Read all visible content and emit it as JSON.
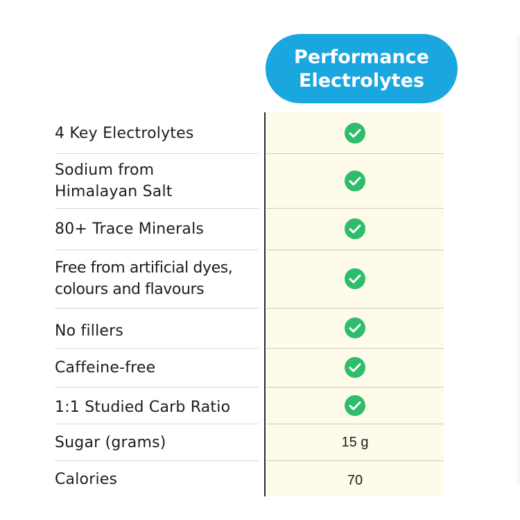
{
  "header": {
    "line1": "Performance",
    "line2": "Electrolytes",
    "color": "#1aa6de"
  },
  "column_background": "#fefbea",
  "check_color": "#2ebd6b",
  "rows": [
    {
      "label_lines": [
        "4 Key Electrolytes"
      ],
      "type": "check"
    },
    {
      "label_lines": [
        "Sodium from",
        "Himalayan Salt"
      ],
      "type": "check"
    },
    {
      "label_lines": [
        "80+ Trace Minerals"
      ],
      "type": "check"
    },
    {
      "label_lines": [
        "Free from artificial dyes,",
        "colours and flavours"
      ],
      "type": "check"
    },
    {
      "label_lines": [
        "No fillers"
      ],
      "type": "check"
    },
    {
      "label_lines": [
        "Caffeine-free"
      ],
      "type": "check"
    },
    {
      "label_lines": [
        "1:1 Studied Carb Ratio"
      ],
      "type": "check"
    },
    {
      "label_lines": [
        "Sugar (grams)"
      ],
      "type": "value",
      "value": "15 g"
    },
    {
      "label_lines": [
        "Calories"
      ],
      "type": "value",
      "value": "70"
    }
  ]
}
